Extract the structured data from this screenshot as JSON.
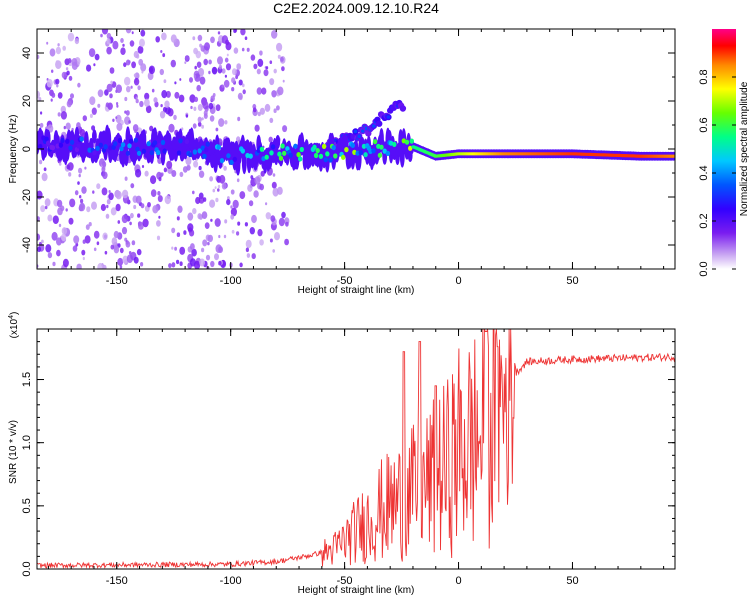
{
  "title": "C2E2.2024.009.12.10.R24",
  "chart_data": [
    {
      "type": "heatmap",
      "xlabel": "Height of straight line (km)",
      "ylabel": "Frequency (Hz)",
      "xlim": [
        -185,
        95
      ],
      "ylim": [
        -50,
        50
      ],
      "x_ticks": [
        -150,
        -100,
        -50,
        0,
        50
      ],
      "y_ticks": [
        -40,
        -20,
        0,
        20,
        40
      ],
      "colorbar": {
        "label": "Normalized spectral amplitude",
        "range": [
          0,
          1
        ],
        "ticks": [
          "0.0",
          "0.2",
          "0.4",
          "0.6",
          "0.8"
        ],
        "tick_values": [
          0.0,
          0.2,
          0.4,
          0.6,
          0.8
        ],
        "colormap": [
          "#ffffff",
          "#c9a6f2",
          "#7a1df0",
          "#3200ff",
          "#0055ff",
          "#00c8ff",
          "#00ff88",
          "#66ff00",
          "#ffff00",
          "#ff8800",
          "#ff0000",
          "#ff0088"
        ]
      },
      "ridge": [
        {
          "x": -185,
          "freq": 2,
          "amp": 0.25
        },
        {
          "x": -150,
          "freq": 1,
          "amp": 0.3
        },
        {
          "x": -120,
          "freq": 1,
          "amp": 0.3
        },
        {
          "x": -100,
          "freq": -3,
          "amp": 0.35
        },
        {
          "x": -80,
          "freq": -1,
          "amp": 0.45
        },
        {
          "x": -60,
          "freq": -2,
          "amp": 0.5
        },
        {
          "x": -40,
          "freq": 0,
          "amp": 0.5
        },
        {
          "x": -20,
          "freq": 1,
          "amp": 0.55
        },
        {
          "x": -10,
          "freq": -3,
          "amp": 0.6
        },
        {
          "x": 0,
          "freq": -2,
          "amp": 0.7
        },
        {
          "x": 20,
          "freq": -2,
          "amp": 0.85
        },
        {
          "x": 50,
          "freq": -2,
          "amp": 0.9
        },
        {
          "x": 80,
          "freq": -3,
          "amp": 0.9
        },
        {
          "x": 95,
          "freq": -3,
          "amp": 0.85
        }
      ],
      "secondary_ridge": [
        {
          "x": -55,
          "freq": 2,
          "amp": 0.3
        },
        {
          "x": -40,
          "freq": 8,
          "amp": 0.35
        },
        {
          "x": -27,
          "freq": 18,
          "amp": 0.3
        }
      ]
    },
    {
      "type": "line",
      "xlabel": "Height of straight line (km)",
      "ylabel": "SNR (10 * v/v)",
      "y_multiplier": "(x10",
      "y_multiplier_exp": "4",
      "y_multiplier_close": ")",
      "xlim": [
        -185,
        95
      ],
      "ylim": [
        0,
        1.9
      ],
      "x_ticks": [
        -150,
        -100,
        -50,
        0,
        50
      ],
      "y_ticks": [
        "0.0",
        "0.5",
        "1.0",
        "1.5"
      ],
      "y_tick_values": [
        0,
        0.5,
        1.0,
        1.5
      ],
      "line_color": "#ee3333",
      "envelope": [
        {
          "x": -185,
          "y": 0.02
        },
        {
          "x": -100,
          "y": 0.03
        },
        {
          "x": -80,
          "y": 0.05
        },
        {
          "x": -65,
          "y": 0.1
        },
        {
          "x": -55,
          "y": 0.15
        },
        {
          "x": -45,
          "y": 0.3
        },
        {
          "x": -35,
          "y": 0.45
        },
        {
          "x": -25,
          "y": 0.55
        },
        {
          "x": -15,
          "y": 0.65
        },
        {
          "x": -5,
          "y": 0.8
        },
        {
          "x": 0,
          "y": 0.95
        },
        {
          "x": 10,
          "y": 1.05
        },
        {
          "x": 20,
          "y": 1.35
        },
        {
          "x": 25,
          "y": 1.55
        },
        {
          "x": 30,
          "y": 1.64
        },
        {
          "x": 50,
          "y": 1.66
        },
        {
          "x": 95,
          "y": 1.68
        }
      ],
      "peaks": [
        {
          "x": -17,
          "y": 1.8
        },
        {
          "x": -24,
          "y": 1.72
        },
        {
          "x": 12,
          "y": 1.88
        },
        {
          "x": 17,
          "y": 1.76
        },
        {
          "x": -10,
          "y": 1.45
        }
      ]
    }
  ]
}
